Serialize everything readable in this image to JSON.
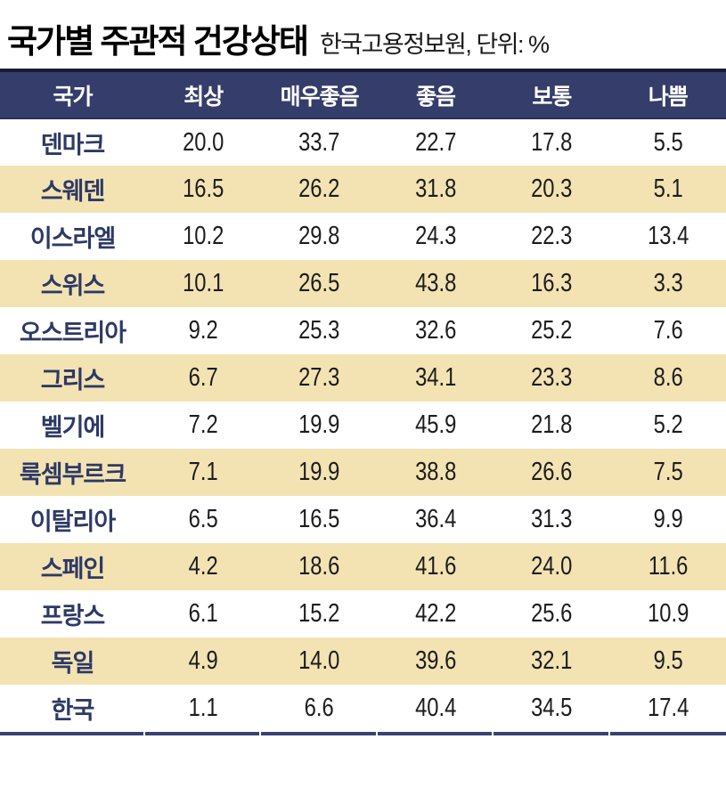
{
  "title": "국가별 주관적 건강상태",
  "subtitle": "한국고용정보원, 단위: %",
  "colors": {
    "header_bg": "#353d6a",
    "header_top_border": "#181b36",
    "row_cream": "#f3e3b2",
    "country_text": "#2d3966",
    "value_text": "#1c1c1c",
    "bottom_rule": "#3a4273"
  },
  "chart_data": {
    "type": "table",
    "title": "국가별 주관적 건강상태",
    "source_label": "한국고용정보원",
    "unit_label": "단위: %",
    "columns": [
      "국가",
      "최상",
      "매우좋음",
      "좋음",
      "보통",
      "나쁨"
    ],
    "rows": [
      {
        "country": "덴마크",
        "values": [
          "20.0",
          "33.7",
          "22.7",
          "17.8",
          "5.5"
        ]
      },
      {
        "country": "스웨덴",
        "values": [
          "16.5",
          "26.2",
          "31.8",
          "20.3",
          "5.1"
        ]
      },
      {
        "country": "이스라엘",
        "values": [
          "10.2",
          "29.8",
          "24.3",
          "22.3",
          "13.4"
        ]
      },
      {
        "country": "스위스",
        "values": [
          "10.1",
          "26.5",
          "43.8",
          "16.3",
          "3.3"
        ]
      },
      {
        "country": "오스트리아",
        "values": [
          "9.2",
          "25.3",
          "32.6",
          "25.2",
          "7.6"
        ]
      },
      {
        "country": "그리스",
        "values": [
          "6.7",
          "27.3",
          "34.1",
          "23.3",
          "8.6"
        ]
      },
      {
        "country": "벨기에",
        "values": [
          "7.2",
          "19.9",
          "45.9",
          "21.8",
          "5.2"
        ]
      },
      {
        "country": "룩셈부르크",
        "values": [
          "7.1",
          "19.9",
          "38.8",
          "26.6",
          "7.5"
        ]
      },
      {
        "country": "이탈리아",
        "values": [
          "6.5",
          "16.5",
          "36.4",
          "31.3",
          "9.9"
        ]
      },
      {
        "country": "스페인",
        "values": [
          "4.2",
          "18.6",
          "41.6",
          "24.0",
          "11.6"
        ]
      },
      {
        "country": "프랑스",
        "values": [
          "6.1",
          "15.2",
          "42.2",
          "25.6",
          "10.9"
        ]
      },
      {
        "country": "독일",
        "values": [
          "4.9",
          "14.0",
          "39.6",
          "32.1",
          "9.5"
        ]
      },
      {
        "country": "한국",
        "values": [
          "1.1",
          "6.6",
          "40.4",
          "34.5",
          "17.4"
        ]
      }
    ],
    "layout": {
      "alternating_row_shading": true,
      "shaded_rows": "even (2nd, 4th, ...)",
      "value_range": [
        0,
        100
      ]
    }
  }
}
